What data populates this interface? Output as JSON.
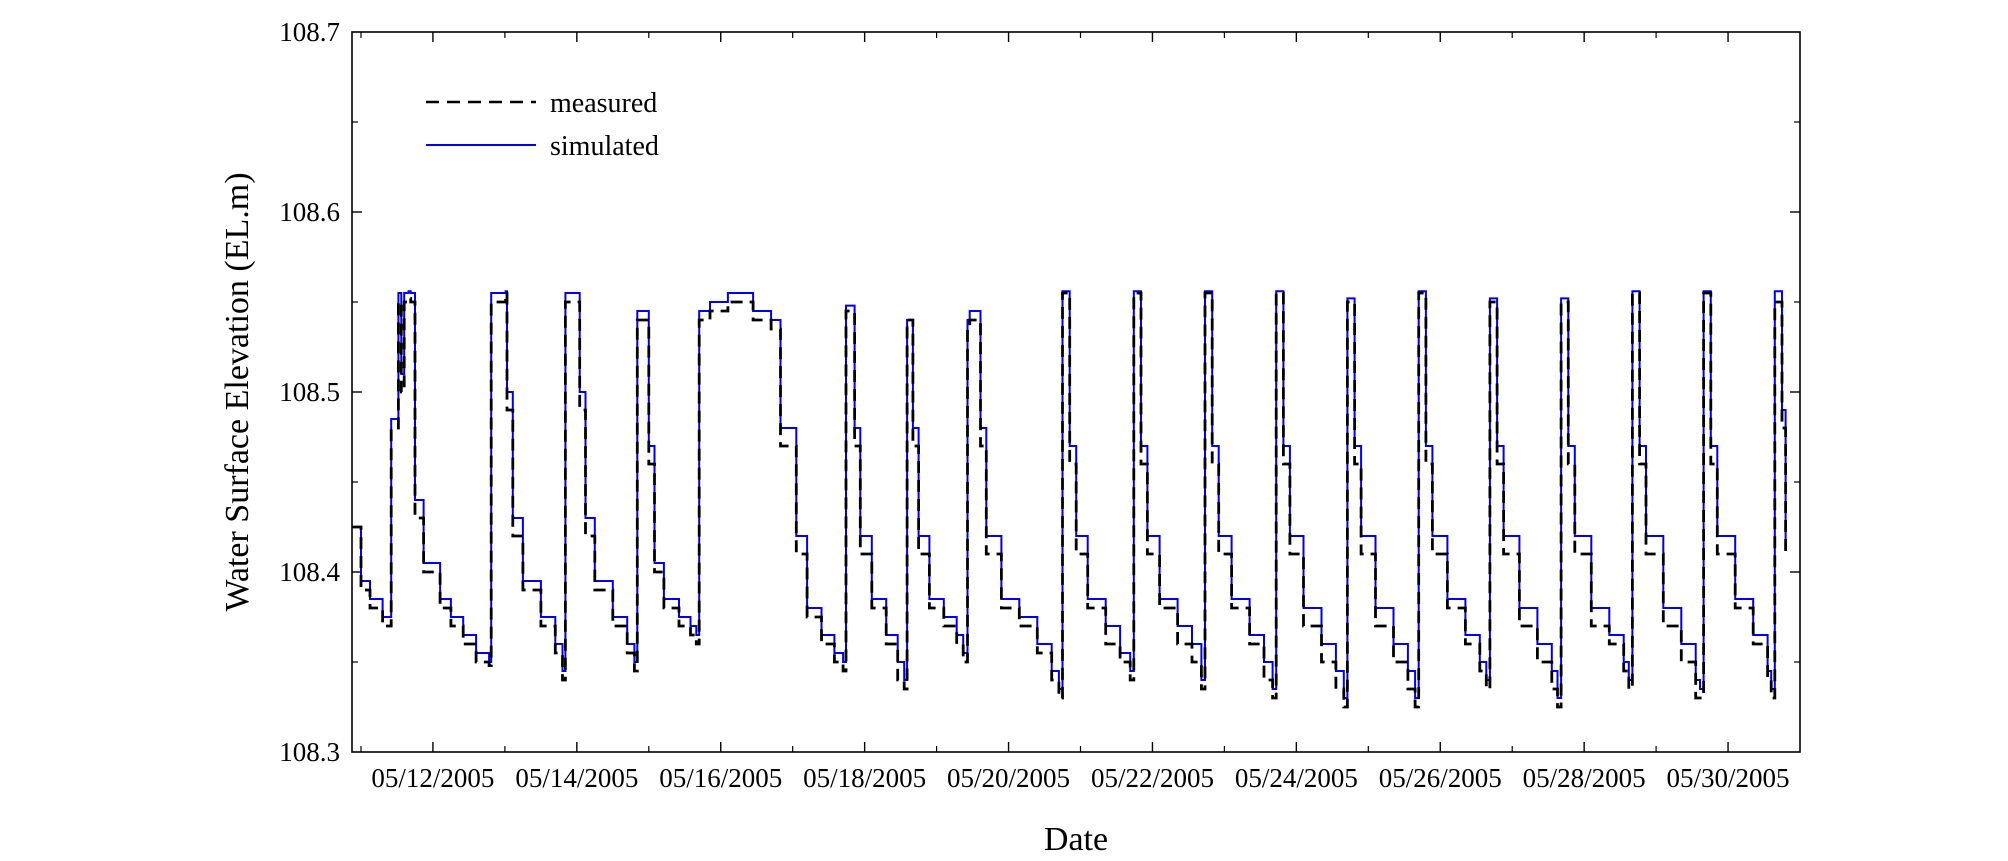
{
  "chart_data": {
    "type": "line",
    "title": "",
    "xlabel": "Date",
    "ylabel": "Water Surface Elevation (EL.m)",
    "x_unit": "day",
    "xlim": [
      "05/10/2005 21:00",
      "05/31/2005 00:00"
    ],
    "ylim": [
      108.3,
      108.7
    ],
    "grid": false,
    "legend_position": "top-left",
    "x_tick_labels": [
      "05/12/2005",
      "05/14/2005",
      "05/16/2005",
      "05/18/2005",
      "05/20/2005",
      "05/22/2005",
      "05/24/2005",
      "05/26/2005",
      "05/28/2005",
      "05/30/2005"
    ],
    "y_tick_labels": [
      "108.3",
      "108.4",
      "108.5",
      "108.6",
      "108.7"
    ],
    "x_ticks": [
      "05/12/2005",
      "05/14/2005",
      "05/16/2005",
      "05/18/2005",
      "05/20/2005",
      "05/22/2005",
      "05/24/2005",
      "05/26/2005",
      "05/28/2005",
      "05/30/2005"
    ],
    "y_ticks": [
      108.3,
      108.4,
      108.5,
      108.6,
      108.7
    ],
    "series": [
      {
        "name": "measured",
        "color": "#000000",
        "style": "dashed",
        "x": [
          "05/10/2005 21:00",
          "05/11/2005 00:00",
          "05/11/2005 03:00",
          "05/11/2005 07:12",
          "05/11/2005 09:22",
          "05/11/2005 10:05",
          "05/11/2005 11:31",
          "05/11/2005 12:29",
          "05/11/2005 13:26",
          "05/11/2005 14:24",
          "05/11/2005 15:07",
          "05/11/2005 15:50",
          "05/11/2005 16:34",
          "05/11/2005 18:00",
          "05/11/2005 20:53",
          "05/12/2005 02:24",
          "05/12/2005 06:00",
          "05/12/2005 10:05",
          "05/12/2005 14:24",
          "05/12/2005 18:43",
          "05/12/2005 19:26",
          "05/12/2005 21:36",
          "05/13/2005 00:14",
          "05/13/2005 00:43",
          "05/13/2005 02:38",
          "05/13/2005 06:00",
          "05/13/2005 12:00",
          "05/13/2005 16:48",
          "05/13/2005 19:12",
          "05/13/2005 20:10",
          "05/13/2005 22:19",
          "05/14/2005 00:29",
          "05/14/2005 00:58",
          "05/14/2005 02:53",
          "05/14/2005 06:00",
          "05/14/2005 12:00",
          "05/14/2005 16:48",
          "05/14/2005 19:12",
          "05/14/2005 20:10",
          "05/14/2005 21:36",
          "05/14/2005 23:31",
          "05/15/2005 00:00",
          "05/15/2005 01:55",
          "05/15/2005 05:02",
          "05/15/2005 10:05",
          "05/15/2005 13:55",
          "05/15/2005 15:50",
          "05/15/2005 16:48",
          "05/15/2005 20:24",
          "05/16/2005 02:24",
          "05/16/2005 07:12",
          "05/16/2005 10:48",
          "05/16/2005 12:29",
          "05/16/2005 14:24",
          "05/16/2005 16:48",
          "05/16/2005 18:29",
          "05/16/2005 19:55",
          "05/16/2005 21:36",
          "05/16/2005 23:02",
          "05/17/2005 01:12",
          "05/17/2005 04:48",
          "05/17/2005 09:36",
          "05/17/2005 13:55",
          "05/17/2005 16:48",
          "05/17/2005 17:46",
          "05/17/2005 19:12",
          "05/17/2005 20:38",
          "05/17/2005 22:34",
          "05/18/2005 02:24",
          "05/18/2005 07:12",
          "05/18/2005 11:02",
          "05/18/2005 13:12",
          "05/18/2005 14:10",
          "05/18/2005 15:07",
          "05/18/2005 16:05",
          "05/18/2005 18:00",
          "05/18/2005 21:36",
          "05/19/2005 02:24",
          "05/19/2005 06:43",
          "05/19/2005 08:53",
          "05/19/2005 10:19",
          "05/19/2005 11:02",
          "05/19/2005 13:12",
          "05/19/2005 14:38",
          "05/19/2005 16:34",
          "05/19/2005 21:36",
          "05/20/2005 03:36",
          "05/20/2005 09:36",
          "05/20/2005 14:24",
          "05/20/2005 16:48",
          "05/20/2005 18:00",
          "05/20/2005 19:12",
          "05/20/2005 20:24",
          "05/20/2005 22:34",
          "05/21/2005 02:24",
          "05/21/2005 08:24",
          "05/21/2005 13:12",
          "05/21/2005 16:34",
          "05/21/2005 17:46",
          "05/21/2005 18:58",
          "05/21/2005 20:10",
          "05/21/2005 22:19",
          "05/22/2005 02:24",
          "05/22/2005 08:24",
          "05/22/2005 13:12",
          "05/22/2005 16:19",
          "05/22/2005 17:31",
          "05/22/2005 18:43",
          "05/22/2005 19:55",
          "05/22/2005 22:05",
          "05/23/2005 02:24",
          "05/23/2005 08:24",
          "05/23/2005 13:12",
          "05/23/2005 16:05",
          "05/23/2005 17:17",
          "05/23/2005 18:29",
          "05/23/2005 19:41",
          "05/23/2005 21:50",
          "05/24/2005 02:24",
          "05/24/2005 08:24",
          "05/24/2005 13:12",
          "05/24/2005 15:50",
          "05/24/2005 17:02",
          "05/24/2005 18:14",
          "05/24/2005 19:26",
          "05/24/2005 21:36",
          "05/25/2005 02:24",
          "05/25/2005 08:24",
          "05/25/2005 13:12",
          "05/25/2005 15:36",
          "05/25/2005 16:48",
          "05/25/2005 18:00",
          "05/25/2005 19:12",
          "05/25/2005 21:22",
          "05/26/2005 02:24",
          "05/26/2005 08:24",
          "05/26/2005 13:12",
          "05/26/2005 15:22",
          "05/26/2005 16:34",
          "05/26/2005 17:46",
          "05/26/2005 18:58",
          "05/26/2005 21:07",
          "05/27/2005 02:24",
          "05/27/2005 08:24",
          "05/27/2005 13:12",
          "05/27/2005 15:07",
          "05/27/2005 16:19",
          "05/27/2005 17:31",
          "05/27/2005 18:43",
          "05/27/2005 20:53",
          "05/28/2005 02:24",
          "05/28/2005 08:24",
          "05/28/2005 13:12",
          "05/28/2005 14:53",
          "05/28/2005 16:05",
          "05/28/2005 17:17",
          "05/28/2005 18:29",
          "05/28/2005 20:38",
          "05/29/2005 02:24",
          "05/29/2005 08:24",
          "05/29/2005 13:12",
          "05/29/2005 14:38",
          "05/29/2005 15:50",
          "05/29/2005 17:02",
          "05/29/2005 18:14",
          "05/29/2005 20:24",
          "05/30/2005 02:24",
          "05/30/2005 08:24",
          "05/30/2005 13:12",
          "05/30/2005 14:24",
          "05/30/2005 15:36",
          "05/30/2005 16:48",
          "05/30/2005 18:00",
          "05/30/2005 19:12"
        ],
        "y": [
          108.425,
          108.39,
          108.38,
          108.37,
          108.37,
          108.48,
          108.48,
          108.55,
          108.5,
          108.55,
          108.55,
          108.552,
          108.55,
          108.43,
          108.4,
          108.38,
          108.37,
          108.36,
          108.35,
          108.348,
          108.55,
          108.55,
          108.555,
          108.49,
          108.42,
          108.39,
          108.37,
          108.355,
          108.34,
          108.55,
          108.55,
          108.55,
          108.49,
          108.42,
          108.39,
          108.37,
          108.355,
          108.345,
          108.54,
          108.54,
          108.54,
          108.46,
          108.4,
          108.38,
          108.37,
          108.365,
          108.36,
          108.54,
          108.545,
          108.55,
          108.55,
          108.54,
          108.54,
          108.54,
          108.535,
          108.535,
          108.47,
          108.47,
          108.47,
          108.41,
          108.375,
          108.36,
          108.35,
          108.345,
          108.545,
          108.545,
          108.47,
          108.41,
          108.38,
          108.36,
          108.34,
          108.335,
          108.54,
          108.54,
          108.47,
          108.41,
          108.38,
          108.37,
          108.36,
          108.35,
          108.535,
          108.54,
          108.54,
          108.47,
          108.41,
          108.38,
          108.37,
          108.355,
          108.34,
          108.33,
          108.555,
          108.555,
          108.46,
          108.41,
          108.38,
          108.36,
          108.35,
          108.34,
          108.555,
          108.555,
          108.46,
          108.41,
          108.38,
          108.36,
          108.35,
          108.335,
          108.555,
          108.555,
          108.46,
          108.41,
          108.38,
          108.36,
          108.34,
          108.33,
          108.555,
          108.555,
          108.46,
          108.41,
          108.37,
          108.35,
          108.335,
          108.325,
          108.55,
          108.55,
          108.46,
          108.41,
          108.37,
          108.35,
          108.335,
          108.325,
          108.555,
          108.555,
          108.46,
          108.41,
          108.38,
          108.36,
          108.345,
          108.335,
          108.55,
          108.55,
          108.46,
          108.41,
          108.37,
          108.35,
          108.335,
          108.325,
          108.55,
          108.55,
          108.46,
          108.41,
          108.37,
          108.36,
          108.345,
          108.335,
          108.555,
          108.555,
          108.46,
          108.41,
          108.37,
          108.35,
          108.33,
          108.33,
          108.555,
          108.555,
          108.46,
          108.41,
          108.38,
          108.36,
          108.34,
          108.33,
          108.55,
          108.55,
          108.48,
          108.41
        ]
      },
      {
        "name": "simulated",
        "color": "#0000ee",
        "style": "solid",
        "x": [
          "05/10/2005 21:00",
          "05/11/2005 00:00",
          "05/11/2005 03:00",
          "05/11/2005 07:12",
          "05/11/2005 09:22",
          "05/11/2005 10:05",
          "05/11/2005 11:31",
          "05/11/2005 12:29",
          "05/11/2005 13:26",
          "05/11/2005 14:24",
          "05/11/2005 15:07",
          "05/11/2005 15:50",
          "05/11/2005 16:34",
          "05/11/2005 18:00",
          "05/11/2005 20:53",
          "05/12/2005 02:24",
          "05/12/2005 06:00",
          "05/12/2005 10:05",
          "05/12/2005 14:24",
          "05/12/2005 18:43",
          "05/12/2005 19:26",
          "05/12/2005 21:36",
          "05/13/2005 00:14",
          "05/13/2005 00:43",
          "05/13/2005 02:38",
          "05/13/2005 06:00",
          "05/13/2005 12:00",
          "05/13/2005 16:48",
          "05/13/2005 19:12",
          "05/13/2005 20:10",
          "05/13/2005 22:19",
          "05/14/2005 00:29",
          "05/14/2005 00:58",
          "05/14/2005 02:53",
          "05/14/2005 06:00",
          "05/14/2005 12:00",
          "05/14/2005 16:48",
          "05/14/2005 19:12",
          "05/14/2005 20:10",
          "05/14/2005 21:36",
          "05/14/2005 23:31",
          "05/15/2005 00:00",
          "05/15/2005 01:55",
          "05/15/2005 05:02",
          "05/15/2005 10:05",
          "05/15/2005 13:55",
          "05/15/2005 15:50",
          "05/15/2005 16:48",
          "05/15/2005 20:24",
          "05/16/2005 02:24",
          "05/16/2005 07:12",
          "05/16/2005 10:48",
          "05/16/2005 12:29",
          "05/16/2005 14:24",
          "05/16/2005 16:48",
          "05/16/2005 18:29",
          "05/16/2005 19:55",
          "05/16/2005 21:36",
          "05/16/2005 23:02",
          "05/17/2005 01:12",
          "05/17/2005 04:48",
          "05/17/2005 09:36",
          "05/17/2005 13:55",
          "05/17/2005 16:48",
          "05/17/2005 17:46",
          "05/17/2005 19:12",
          "05/17/2005 20:38",
          "05/17/2005 22:34",
          "05/18/2005 02:24",
          "05/18/2005 07:12",
          "05/18/2005 11:02",
          "05/18/2005 13:12",
          "05/18/2005 14:10",
          "05/18/2005 15:07",
          "05/18/2005 16:05",
          "05/18/2005 18:00",
          "05/18/2005 21:36",
          "05/19/2005 02:24",
          "05/19/2005 06:43",
          "05/19/2005 08:53",
          "05/19/2005 10:19",
          "05/19/2005 11:02",
          "05/19/2005 13:12",
          "05/19/2005 14:38",
          "05/19/2005 16:34",
          "05/19/2005 21:36",
          "05/20/2005 03:36",
          "05/20/2005 09:36",
          "05/20/2005 14:24",
          "05/20/2005 16:48",
          "05/20/2005 18:00",
          "05/20/2005 19:12",
          "05/20/2005 20:24",
          "05/20/2005 22:34",
          "05/21/2005 02:24",
          "05/21/2005 08:24",
          "05/21/2005 13:12",
          "05/21/2005 16:34",
          "05/21/2005 17:46",
          "05/21/2005 18:58",
          "05/21/2005 20:10",
          "05/21/2005 22:19",
          "05/22/2005 02:24",
          "05/22/2005 08:24",
          "05/22/2005 13:12",
          "05/22/2005 16:19",
          "05/22/2005 17:31",
          "05/22/2005 18:43",
          "05/22/2005 19:55",
          "05/22/2005 22:05",
          "05/23/2005 02:24",
          "05/23/2005 08:24",
          "05/23/2005 13:12",
          "05/23/2005 16:05",
          "05/23/2005 17:17",
          "05/23/2005 18:29",
          "05/23/2005 19:41",
          "05/23/2005 21:50",
          "05/24/2005 02:24",
          "05/24/2005 08:24",
          "05/24/2005 13:12",
          "05/24/2005 15:50",
          "05/24/2005 17:02",
          "05/24/2005 18:14",
          "05/24/2005 19:26",
          "05/24/2005 21:36",
          "05/25/2005 02:24",
          "05/25/2005 08:24",
          "05/25/2005 13:12",
          "05/25/2005 15:36",
          "05/25/2005 16:48",
          "05/25/2005 18:00",
          "05/25/2005 19:12",
          "05/25/2005 21:22",
          "05/26/2005 02:24",
          "05/26/2005 08:24",
          "05/26/2005 13:12",
          "05/26/2005 15:22",
          "05/26/2005 16:34",
          "05/26/2005 17:46",
          "05/26/2005 18:58",
          "05/26/2005 21:07",
          "05/27/2005 02:24",
          "05/27/2005 08:24",
          "05/27/2005 13:12",
          "05/27/2005 15:07",
          "05/27/2005 16:19",
          "05/27/2005 17:31",
          "05/27/2005 18:43",
          "05/27/2005 20:53",
          "05/28/2005 02:24",
          "05/28/2005 08:24",
          "05/28/2005 13:12",
          "05/28/2005 14:53",
          "05/28/2005 16:05",
          "05/28/2005 17:17",
          "05/28/2005 18:29",
          "05/28/2005 20:38",
          "05/29/2005 02:24",
          "05/29/2005 08:24",
          "05/29/2005 13:12",
          "05/29/2005 14:38",
          "05/29/2005 15:50",
          "05/29/2005 17:02",
          "05/29/2005 18:14",
          "05/29/2005 20:24",
          "05/30/2005 02:24",
          "05/30/2005 08:24",
          "05/30/2005 13:12",
          "05/30/2005 14:24",
          "05/30/2005 15:36",
          "05/30/2005 16:48",
          "05/30/2005 18:00",
          "05/30/2005 19:12"
        ],
        "y": [
          108.425,
          108.395,
          108.385,
          108.375,
          108.375,
          108.485,
          108.485,
          108.555,
          108.51,
          108.555,
          108.555,
          108.556,
          108.555,
          108.44,
          108.405,
          108.385,
          108.375,
          108.365,
          108.355,
          108.35,
          108.555,
          108.555,
          108.556,
          108.5,
          108.43,
          108.395,
          108.375,
          108.36,
          108.345,
          108.555,
          108.555,
          108.555,
          108.5,
          108.43,
          108.395,
          108.375,
          108.36,
          108.35,
          108.545,
          108.545,
          108.545,
          108.47,
          108.405,
          108.385,
          108.375,
          108.37,
          108.365,
          108.545,
          108.55,
          108.555,
          108.555,
          108.545,
          108.545,
          108.545,
          108.54,
          108.54,
          108.48,
          108.48,
          108.48,
          108.42,
          108.38,
          108.365,
          108.355,
          108.35,
          108.548,
          108.548,
          108.48,
          108.42,
          108.385,
          108.365,
          108.35,
          108.34,
          108.54,
          108.54,
          108.48,
          108.42,
          108.385,
          108.375,
          108.365,
          108.355,
          108.54,
          108.545,
          108.545,
          108.48,
          108.42,
          108.385,
          108.375,
          108.36,
          108.345,
          108.335,
          108.556,
          108.556,
          108.47,
          108.42,
          108.385,
          108.37,
          108.355,
          108.345,
          108.556,
          108.556,
          108.47,
          108.42,
          108.385,
          108.37,
          108.36,
          108.34,
          108.556,
          108.556,
          108.47,
          108.42,
          108.385,
          108.365,
          108.35,
          108.335,
          108.556,
          108.556,
          108.47,
          108.42,
          108.38,
          108.36,
          108.345,
          108.33,
          108.552,
          108.552,
          108.47,
          108.42,
          108.38,
          108.36,
          108.345,
          108.33,
          108.556,
          108.556,
          108.47,
          108.42,
          108.385,
          108.365,
          108.35,
          108.34,
          108.552,
          108.552,
          108.47,
          108.42,
          108.38,
          108.36,
          108.345,
          108.33,
          108.552,
          108.552,
          108.47,
          108.42,
          108.38,
          108.365,
          108.35,
          108.34,
          108.556,
          108.556,
          108.47,
          108.42,
          108.38,
          108.36,
          108.34,
          108.335,
          108.556,
          108.556,
          108.47,
          108.42,
          108.385,
          108.365,
          108.345,
          108.335,
          108.556,
          108.556,
          108.49,
          108.415
        ]
      }
    ]
  }
}
